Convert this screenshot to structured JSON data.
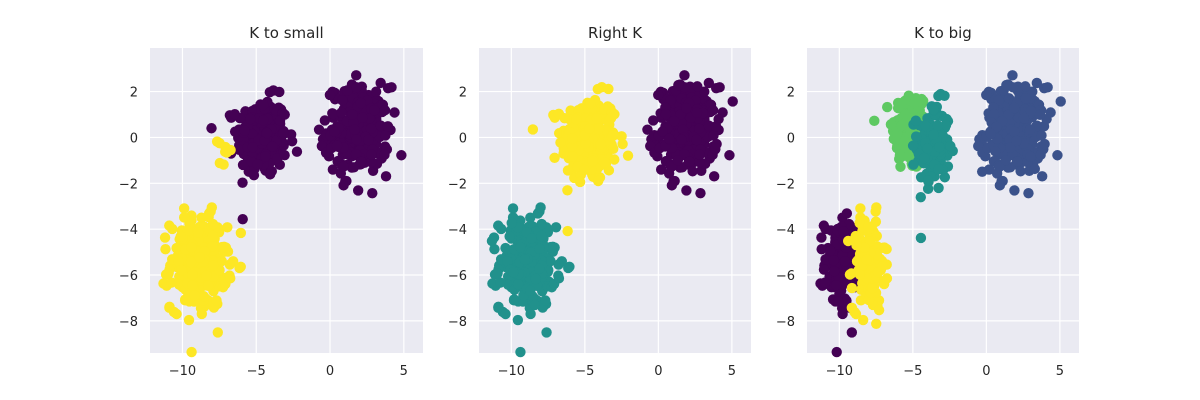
{
  "figure": {
    "background": "#ffffff"
  },
  "style": {
    "axes_background": "#eaeaf2",
    "grid_color": "#ffffff",
    "text_color": "#262626"
  },
  "palette": {
    "viridis_0": "#440154",
    "viridis_033": "#31688e",
    "viridis_05": "#21918c",
    "viridis_066": "#35b779",
    "viridis_1": "#fde725",
    "dark_blue": "#3b528b",
    "green": "#5ec962"
  },
  "chart_data": [
    {
      "type": "scatter",
      "title": "K to small",
      "xlabel": "",
      "ylabel": "",
      "xlim": [
        -12.2,
        6.3
      ],
      "ylim": [
        -9.4,
        3.9
      ],
      "xticks": [
        -10,
        -5,
        0,
        5
      ],
      "yticks": [
        2,
        0,
        -2,
        -4,
        -6,
        -8
      ],
      "grid": true,
      "legend": "none",
      "clusters": [
        {
          "name": "",
          "color": "#440154",
          "center": [
            -4.6,
            0.0
          ],
          "spread": [
            0.85,
            0.85
          ],
          "n": 260
        },
        {
          "name": "",
          "color": "#440154",
          "center": [
            1.9,
            0.3
          ],
          "spread": [
            1.05,
            0.95
          ],
          "n": 280
        },
        {
          "name": "",
          "color": "#fde725",
          "center": [
            -8.9,
            -5.5
          ],
          "spread": [
            0.95,
            1.0
          ],
          "n": 280
        },
        {
          "name": "",
          "color": "#fde725",
          "center": [
            -7.2,
            -0.8
          ],
          "spread": [
            0.4,
            0.35
          ],
          "n": 8
        }
      ]
    },
    {
      "type": "scatter",
      "title": "Right K",
      "xlabel": "",
      "ylabel": "",
      "xlim": [
        -12.2,
        6.3
      ],
      "ylim": [
        -9.4,
        3.9
      ],
      "xticks": [
        -10,
        -5,
        0,
        5
      ],
      "yticks": [
        2,
        0,
        -2,
        -4,
        -6,
        -8
      ],
      "grid": true,
      "legend": "none",
      "clusters": [
        {
          "name": "",
          "color": "#fde725",
          "center": [
            -4.7,
            -0.1
          ],
          "spread": [
            0.95,
            0.95
          ],
          "n": 280
        },
        {
          "name": "",
          "color": "#440154",
          "center": [
            1.9,
            0.3
          ],
          "spread": [
            1.05,
            0.95
          ],
          "n": 280
        },
        {
          "name": "",
          "color": "#21918c",
          "center": [
            -8.9,
            -5.5
          ],
          "spread": [
            0.95,
            1.0
          ],
          "n": 280
        }
      ]
    },
    {
      "type": "scatter",
      "title": "K to big",
      "xlabel": "",
      "ylabel": "",
      "xlim": [
        -12.2,
        6.3
      ],
      "ylim": [
        -9.4,
        3.9
      ],
      "xticks": [
        -10,
        -5,
        0,
        5
      ],
      "yticks": [
        2,
        0,
        -2,
        -4,
        -6,
        -8
      ],
      "grid": true,
      "legend": "none",
      "clusters": [
        {
          "name": "",
          "color": "#5ec962",
          "center": [
            -5.2,
            0.3
          ],
          "spread": [
            0.6,
            0.9
          ],
          "n": 150
        },
        {
          "name": "",
          "color": "#21918c",
          "center": [
            -3.6,
            -0.4
          ],
          "spread": [
            0.55,
            0.95
          ],
          "n": 150
        },
        {
          "name": "",
          "color": "#3b528b",
          "center": [
            1.9,
            0.3
          ],
          "spread": [
            1.05,
            0.95
          ],
          "n": 280
        },
        {
          "name": "",
          "color": "#440154",
          "center": [
            -9.9,
            -5.5
          ],
          "spread": [
            0.55,
            1.0
          ],
          "n": 150
        },
        {
          "name": "",
          "color": "#fde725",
          "center": [
            -8.0,
            -5.5
          ],
          "spread": [
            0.55,
            1.0
          ],
          "n": 150
        }
      ]
    }
  ]
}
